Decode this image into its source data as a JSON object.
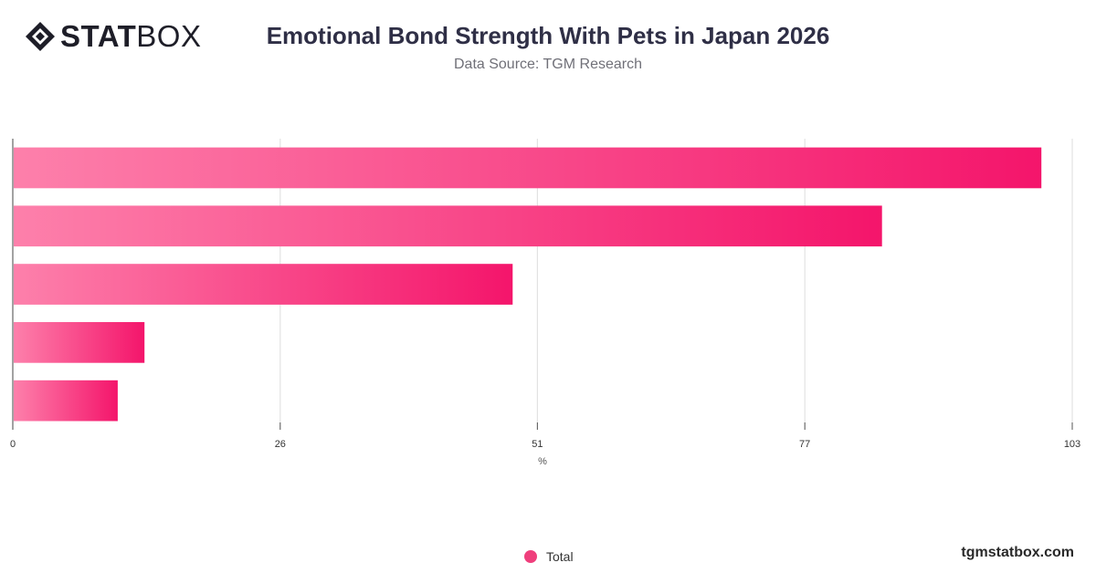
{
  "header": {
    "logo_bold": "STAT",
    "logo_light": "BOX",
    "title": "Emotional Bond Strength With Pets in Japan 2026",
    "subtitle": "Data Source: TGM Research"
  },
  "footer": {
    "brand": "tgmstatbox.com"
  },
  "colors": {
    "bar_start": "#fd80ab",
    "bar_end": "#f4156b",
    "legend": "#ef3f7c",
    "grid": "#dddddd"
  },
  "chart_data": {
    "type": "bar",
    "orientation": "horizontal",
    "xlabel": "%",
    "xlim": [
      0,
      103
    ],
    "x_ticks": [
      0,
      26,
      51,
      77,
      103
    ],
    "grid": true,
    "legend_position": "bottom",
    "series": [
      {
        "name": "Total",
        "values": [
          100,
          84.5,
          48.6,
          12.8,
          10.2
        ]
      }
    ]
  }
}
